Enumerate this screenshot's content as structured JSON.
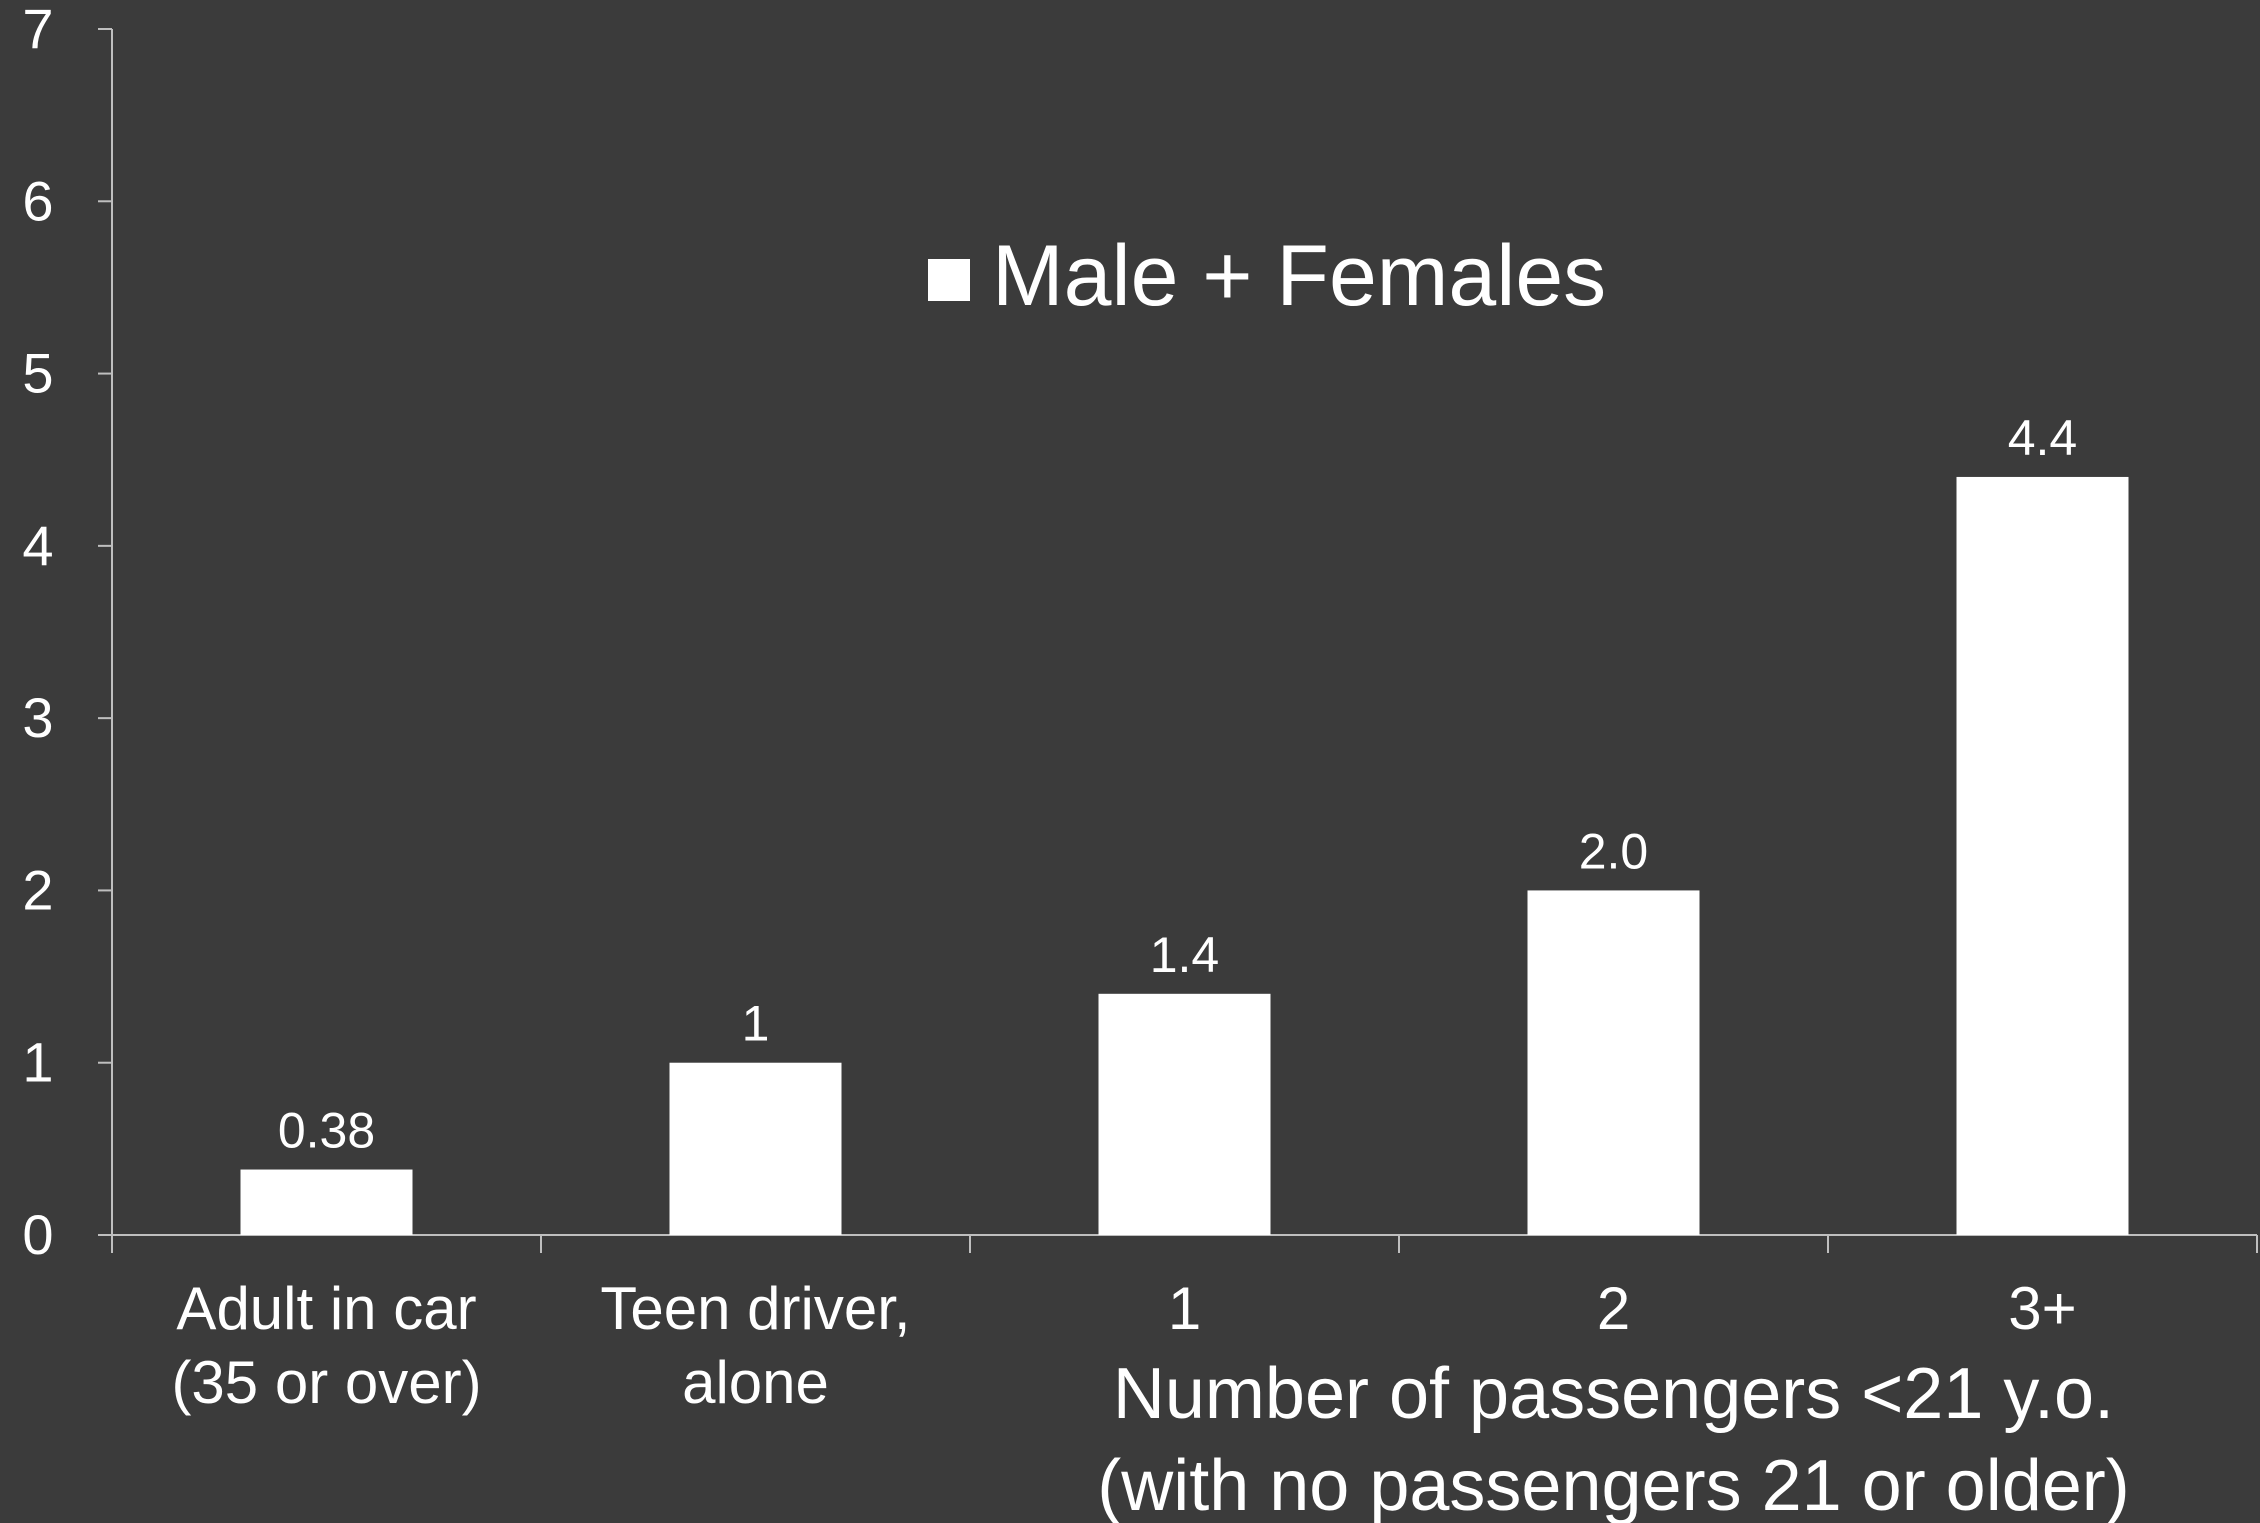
{
  "chart_data": {
    "type": "bar",
    "categories": [
      [
        "Adult in car",
        "(35 or over)"
      ],
      [
        "Teen driver,",
        "alone"
      ],
      [
        "1"
      ],
      [
        "2"
      ],
      [
        "3+"
      ]
    ],
    "series": [
      {
        "name": "Male + Females",
        "values": [
          0.38,
          1,
          1.4,
          2.0,
          4.4
        ],
        "data_labels": [
          "0.38",
          "1",
          "1.4",
          "2.0",
          "4.4"
        ]
      }
    ],
    "x_group_label": [
      "Number of passengers <21 y.o.",
      "(with no passengers 21 or older)"
    ],
    "ylim": [
      0,
      7
    ],
    "y_ticks": [
      0,
      1,
      2,
      3,
      4,
      5,
      6,
      7
    ],
    "grid": false,
    "legend_position": "top-center",
    "colors": {
      "background": "#3b3b3b",
      "bar": "#ffffff",
      "axis": "#bfbfbf",
      "text": "#ffffff"
    }
  }
}
